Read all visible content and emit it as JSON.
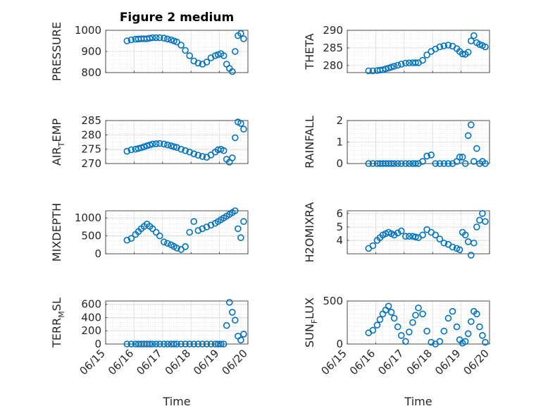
{
  "figure": {
    "title": "Figure 2 medium",
    "xlabel": "Time",
    "x_tick_labels": [
      "06/15",
      "06/16",
      "06/17",
      "06/18",
      "06/19",
      "06/20"
    ],
    "marker_color": "#0072BD",
    "grid_color": "#d0d0d0"
  },
  "chart_data": [
    {
      "type": "scatter",
      "ylabel": "PRESSURE",
      "ylim": [
        800,
        1000
      ],
      "yticks": [
        800,
        900,
        1000
      ],
      "ylabel_parts": [
        "PRESSURE"
      ],
      "x": [
        15.75,
        15.9,
        16.05,
        16.25,
        16.45,
        16.65,
        16.9,
        17.05,
        17.3,
        17.5,
        17.65,
        17.8,
        17.95,
        18.1,
        18.25,
        18.4,
        18.55,
        18.7,
        18.85,
        18.95,
        19.05,
        19.15,
        19.25,
        19.35,
        19.45,
        19.55,
        19.65,
        19.75,
        19.85
      ],
      "y": [
        950,
        955,
        958,
        960,
        960,
        965,
        965,
        963,
        955,
        945,
        930,
        905,
        880,
        855,
        845,
        840,
        850,
        870,
        880,
        885,
        890,
        880,
        840,
        820,
        805,
        900,
        975,
        985,
        960
      ]
    },
    {
      "type": "scatter",
      "ylabel": "THETA",
      "ylim": [
        278,
        290
      ],
      "yticks": [
        280,
        285,
        290
      ],
      "ylabel_parts": [
        "THETA"
      ],
      "x": [
        15.75,
        15.9,
        16.05,
        16.25,
        16.45,
        16.65,
        16.9,
        17.05,
        17.3,
        17.5,
        17.65,
        17.8,
        17.95,
        18.1,
        18.25,
        18.4,
        18.55,
        18.7,
        18.85,
        18.95,
        19.05,
        19.15,
        19.25,
        19.35,
        19.45,
        19.55,
        19.65,
        19.75,
        19.85
      ],
      "y": [
        278.5,
        278.5,
        278.6,
        278.8,
        279.3,
        279.8,
        280.4,
        280.7,
        280.8,
        280.8,
        281.5,
        283.0,
        284.0,
        284.7,
        285.3,
        285.6,
        285.8,
        285.5,
        284.8,
        284.0,
        283.3,
        283.2,
        283.8,
        287.0,
        288.5,
        286.5,
        286.0,
        285.7,
        285.3
      ]
    },
    {
      "type": "scatter",
      "ylabel": "AIR_TEMP",
      "ylim": [
        270,
        285
      ],
      "yticks": [
        270,
        275,
        280,
        285
      ],
      "ylabel_parts": [
        "AIR",
        "T",
        "EMP"
      ],
      "x": [
        15.75,
        15.9,
        16.05,
        16.25,
        16.45,
        16.65,
        16.9,
        17.05,
        17.3,
        17.5,
        17.65,
        17.8,
        17.95,
        18.1,
        18.25,
        18.4,
        18.55,
        18.7,
        18.85,
        18.95,
        19.05,
        19.15,
        19.25,
        19.35,
        19.45,
        19.55,
        19.65,
        19.75,
        19.85
      ],
      "y": [
        274.3,
        274.8,
        275.0,
        275.5,
        276.2,
        276.8,
        277.0,
        276.8,
        276.2,
        275.6,
        275.0,
        274.5,
        274.0,
        273.4,
        272.9,
        272.5,
        272.2,
        273.0,
        274.0,
        274.8,
        275.0,
        274.5,
        271.5,
        270.5,
        272.0,
        279.0,
        284.5,
        284.0,
        282.0
      ]
    },
    {
      "type": "scatter",
      "ylabel": "RAINFALL",
      "ylim": [
        0,
        2
      ],
      "yticks": [
        0,
        1,
        2
      ],
      "ylabel_parts": [
        "RAINFALL"
      ],
      "x": [
        15.75,
        15.9,
        16.05,
        16.25,
        16.45,
        16.65,
        16.9,
        17.05,
        17.3,
        17.5,
        17.65,
        17.8,
        17.95,
        18.1,
        18.25,
        18.4,
        18.55,
        18.7,
        18.85,
        18.95,
        19.05,
        19.15,
        19.25,
        19.35,
        19.45,
        19.55,
        19.65,
        19.75,
        19.85
      ],
      "y": [
        0,
        0,
        0,
        0,
        0,
        0,
        0,
        0,
        0,
        0,
        0.1,
        0.35,
        0.4,
        0,
        0,
        0,
        0,
        0,
        0.1,
        0.3,
        0.3,
        0,
        1.3,
        1.8,
        0.1,
        0.7,
        0,
        0.1,
        0
      ]
    },
    {
      "type": "scatter",
      "ylabel": "MIXDEPTH",
      "ylim": [
        0,
        1200
      ],
      "yticks": [
        0,
        500,
        1000
      ],
      "ylabel_parts": [
        "MIXDEPTH"
      ],
      "x": [
        15.75,
        15.9,
        16.05,
        16.25,
        16.45,
        16.65,
        16.9,
        17.05,
        17.3,
        17.5,
        17.65,
        17.8,
        17.95,
        18.1,
        18.25,
        18.4,
        18.55,
        18.7,
        18.85,
        18.95,
        19.05,
        19.15,
        19.25,
        19.35,
        19.45,
        19.55,
        19.65,
        19.75,
        19.85
      ],
      "y": [
        380,
        430,
        540,
        700,
        830,
        700,
        500,
        330,
        250,
        160,
        120,
        200,
        600,
        900,
        650,
        700,
        750,
        800,
        850,
        900,
        950,
        1000,
        1050,
        1100,
        1150,
        1200,
        700,
        450,
        900
      ]
    },
    {
      "type": "scatter",
      "ylabel": "H2OMIXRA",
      "ylim": [
        3,
        6.2
      ],
      "yticks": [
        4,
        5,
        6
      ],
      "ylabel_parts": [
        "H2OMIXRA"
      ],
      "x": [
        15.75,
        15.9,
        16.05,
        16.25,
        16.45,
        16.65,
        16.9,
        17.05,
        17.3,
        17.5,
        17.65,
        17.8,
        17.95,
        18.1,
        18.25,
        18.4,
        18.55,
        18.7,
        18.85,
        18.95,
        19.05,
        19.15,
        19.25,
        19.35,
        19.45,
        19.55,
        19.65,
        19.75,
        19.85
      ],
      "y": [
        3.4,
        3.6,
        4.0,
        4.4,
        4.6,
        4.4,
        4.7,
        4.3,
        4.3,
        4.2,
        4.4,
        4.8,
        4.6,
        4.4,
        4.1,
        3.8,
        3.7,
        3.5,
        3.4,
        3.3,
        4.6,
        4.4,
        3.9,
        2.9,
        3.8,
        5.0,
        5.5,
        6.0,
        5.4
      ]
    },
    {
      "type": "scatter",
      "ylabel": "TERR_MSL",
      "ylim": [
        0,
        650
      ],
      "yticks": [
        0,
        200,
        400,
        600
      ],
      "ylabel_parts": [
        "TERR",
        "M",
        "SL"
      ],
      "x": [
        15.75,
        15.9,
        16.05,
        16.25,
        16.45,
        16.65,
        16.9,
        17.05,
        17.3,
        17.5,
        17.65,
        17.8,
        17.95,
        18.1,
        18.25,
        18.4,
        18.55,
        18.7,
        18.85,
        18.95,
        19.05,
        19.15,
        19.25,
        19.35,
        19.45,
        19.55,
        19.65,
        19.75,
        19.85
      ],
      "y": [
        0,
        0,
        0,
        0,
        0,
        0,
        0,
        0,
        0,
        0,
        0,
        0,
        0,
        0,
        0,
        0,
        0,
        0,
        0,
        0,
        0,
        0,
        280,
        630,
        480,
        360,
        120,
        60,
        150
      ]
    },
    {
      "type": "scatter",
      "ylabel": "SUN_FLUX",
      "ylim": [
        0,
        500
      ],
      "yticks": [
        0,
        500
      ],
      "ylabel_parts": [
        "SUN",
        "F",
        "LUX"
      ],
      "x": [
        15.75,
        15.9,
        16.05,
        16.25,
        16.45,
        16.65,
        16.9,
        17.05,
        17.3,
        17.5,
        17.65,
        17.8,
        17.95,
        18.1,
        18.25,
        18.4,
        18.55,
        18.7,
        18.85,
        18.95,
        19.05,
        19.15,
        19.25,
        19.35,
        19.45,
        19.55,
        19.65,
        19.75,
        19.85
      ],
      "y": [
        130,
        160,
        220,
        350,
        440,
        300,
        100,
        30,
        250,
        420,
        350,
        150,
        20,
        0,
        30,
        150,
        300,
        380,
        200,
        50,
        10,
        30,
        120,
        260,
        380,
        350,
        200,
        100,
        20
      ]
    }
  ]
}
